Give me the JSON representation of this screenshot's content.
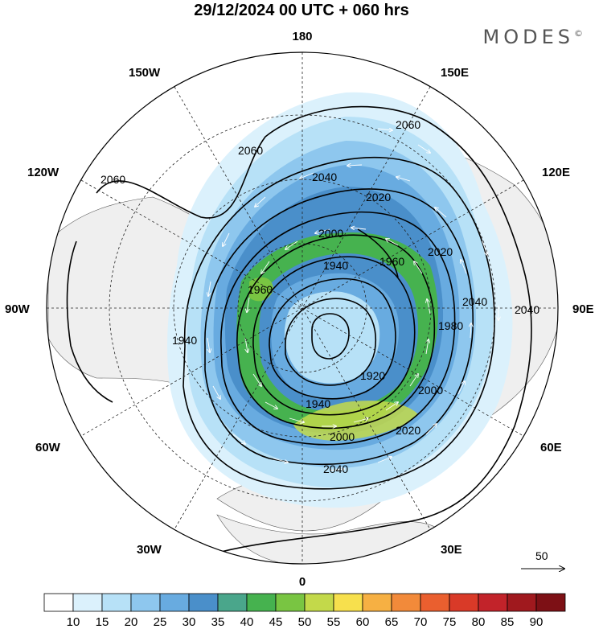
{
  "title": "29/12/2024  00 UTC  + 060 hrs",
  "brand": "MODES",
  "brand_mark": "©",
  "lon_labels": {
    "top": "180",
    "bottom": "0",
    "left": "90W",
    "right": "90E",
    "ul1": "150W",
    "ul2": "120W",
    "ur1": "150E",
    "ur2": "120E",
    "ll1": "60W",
    "ll2": "30W",
    "lr1": "60E",
    "lr2": "30E"
  },
  "contour_labels": [
    "2060",
    "2060",
    "2060",
    "2040",
    "2040",
    "2040",
    "2040",
    "2020",
    "2020",
    "2020",
    "2000",
    "2000",
    "2000",
    "1980",
    "1960",
    "1940",
    "1940",
    "1920",
    "1960",
    "1940"
  ],
  "vector_key": {
    "value": "50"
  },
  "colorbar": {
    "ticks": [
      "10",
      "15",
      "20",
      "25",
      "30",
      "35",
      "40",
      "45",
      "50",
      "55",
      "60",
      "65",
      "70",
      "75",
      "80",
      "85",
      "90"
    ],
    "colors": [
      "#ffffff",
      "#dbf1fc",
      "#b7e1f7",
      "#8ec7ee",
      "#68abe0",
      "#4a8fca",
      "#4aa68b",
      "#46b24f",
      "#79c542",
      "#c3d94a",
      "#f7e04d",
      "#f6b043",
      "#f28a3a",
      "#ea5f2f",
      "#d93a28",
      "#c2232a",
      "#a0191e",
      "#7d1015"
    ]
  }
}
